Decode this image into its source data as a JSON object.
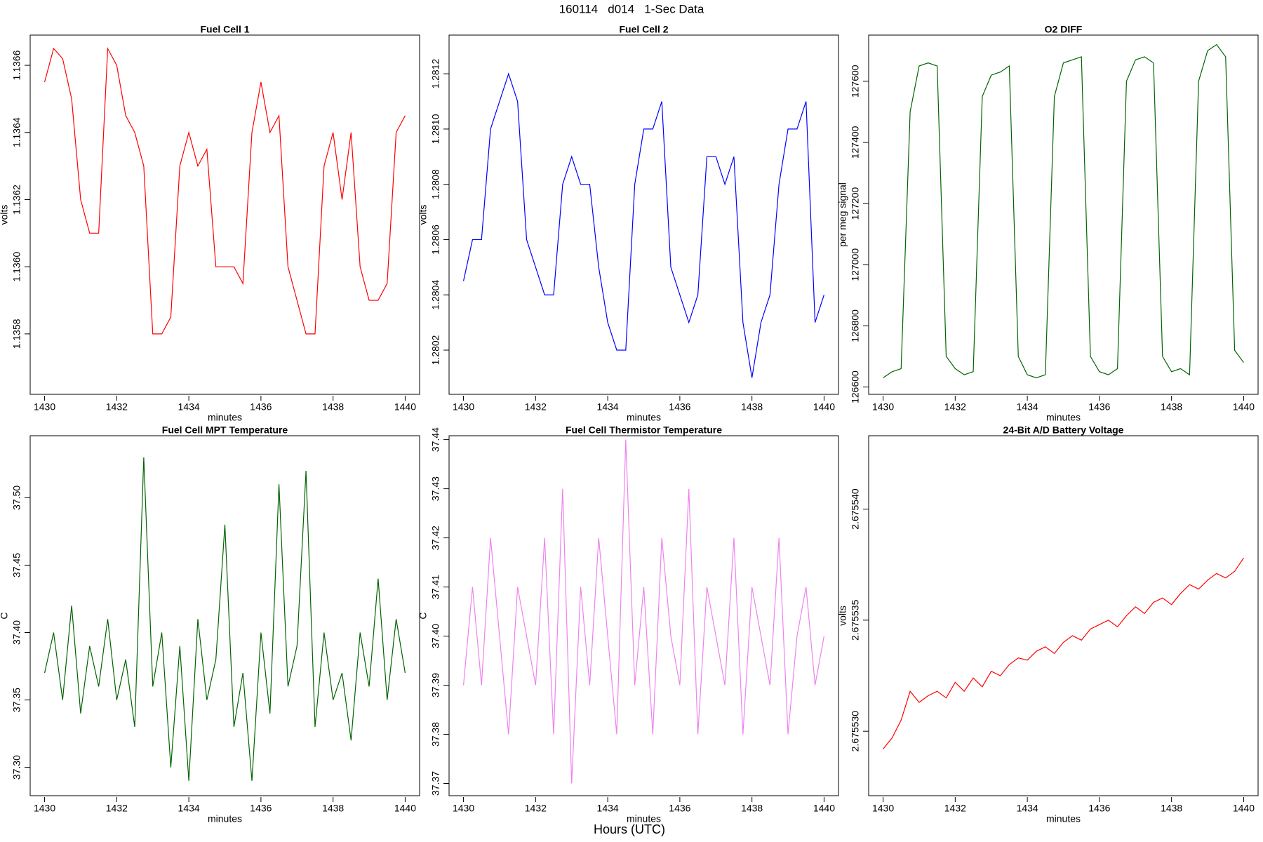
{
  "title": "160114   d014   1-Sec Data",
  "xlabel": "Hours (UTC)",
  "chart_data": [
    {
      "type": "line",
      "title": "Fuel Cell 1",
      "xlabel": "minutes",
      "ylabel": "volts",
      "color": "#ff0000",
      "x": [
        1430,
        1430.25,
        1430.5,
        1430.75,
        1431,
        1431.25,
        1431.5,
        1431.75,
        1432,
        1432.25,
        1432.5,
        1432.75,
        1433,
        1433.25,
        1433.5,
        1433.75,
        1434,
        1434.25,
        1434.5,
        1434.75,
        1435,
        1435.25,
        1435.5,
        1435.75,
        1436,
        1436.25,
        1436.5,
        1436.75,
        1437,
        1437.25,
        1437.5,
        1437.75,
        1438,
        1438.25,
        1438.5,
        1438.75,
        1439,
        1439.25,
        1439.5,
        1439.75,
        1440
      ],
      "values": [
        1.13655,
        1.13665,
        1.13662,
        1.1365,
        1.1362,
        1.1361,
        1.1361,
        1.13665,
        1.1366,
        1.13645,
        1.1364,
        1.1363,
        1.1358,
        1.1358,
        1.13585,
        1.1363,
        1.1364,
        1.1363,
        1.13635,
        1.136,
        1.136,
        1.136,
        1.13595,
        1.1364,
        1.13655,
        1.1364,
        1.13645,
        1.136,
        1.1359,
        1.1358,
        1.1358,
        1.1363,
        1.1364,
        1.1362,
        1.1364,
        1.136,
        1.1359,
        1.1359,
        1.13595,
        1.1364,
        1.13645
      ],
      "xlim": [
        1429.6,
        1440.4
      ],
      "xticks": [
        1430,
        1432,
        1434,
        1436,
        1438,
        1440
      ],
      "ylim": [
        1.13562,
        1.13669
      ],
      "yticks": [
        1.1358,
        {
          "value": 1.136,
          "label": "1.1360"
        },
        1.1362,
        1.1364,
        1.1366
      ]
    },
    {
      "type": "line",
      "title": "Fuel Cell 2",
      "xlabel": "minutes",
      "ylabel": "volts",
      "color": "#0000ff",
      "x": [
        1430,
        1430.25,
        1430.5,
        1430.75,
        1431,
        1431.25,
        1431.5,
        1431.75,
        1432,
        1432.25,
        1432.5,
        1432.75,
        1433,
        1433.25,
        1433.5,
        1433.75,
        1434,
        1434.25,
        1434.5,
        1434.75,
        1435,
        1435.25,
        1435.5,
        1435.75,
        1436,
        1436.25,
        1436.5,
        1436.75,
        1437,
        1437.25,
        1437.5,
        1437.75,
        1438,
        1438.25,
        1438.5,
        1438.75,
        1439,
        1439.25,
        1439.5,
        1439.75,
        1440
      ],
      "values": [
        1.28045,
        1.2806,
        1.2806,
        1.281,
        1.2811,
        1.2812,
        1.2811,
        1.2806,
        1.2805,
        1.2804,
        1.2804,
        1.2808,
        1.2809,
        1.2808,
        1.2808,
        1.2805,
        1.2803,
        1.2802,
        1.2802,
        1.2808,
        1.281,
        1.281,
        1.2811,
        1.2805,
        1.2804,
        1.2803,
        1.2804,
        1.2809,
        1.2809,
        1.2808,
        1.2809,
        1.2803,
        1.2801,
        1.2803,
        1.2804,
        1.2808,
        1.281,
        1.281,
        1.2811,
        1.2803,
        1.2804
      ],
      "xlim": [
        1429.6,
        1440.4
      ],
      "xticks": [
        1430,
        1432,
        1434,
        1436,
        1438,
        1440
      ],
      "ylim": [
        1.28004,
        1.28134
      ],
      "yticks": [
        1.2802,
        1.2804,
        1.2806,
        1.2808,
        {
          "value": 1.281,
          "label": "1.2810"
        },
        1.2812
      ]
    },
    {
      "type": "line",
      "title": "O2 DIFF",
      "xlabel": "minutes",
      "ylabel": "per meg signal",
      "color": "#006400",
      "x": [
        1430,
        1430.25,
        1430.5,
        1430.75,
        1431,
        1431.25,
        1431.5,
        1431.75,
        1432,
        1432.25,
        1432.5,
        1432.75,
        1433,
        1433.25,
        1433.5,
        1433.75,
        1434,
        1434.25,
        1434.5,
        1434.75,
        1435,
        1435.25,
        1435.5,
        1435.75,
        1436,
        1436.25,
        1436.5,
        1436.75,
        1437,
        1437.25,
        1437.5,
        1437.75,
        1438,
        1438.25,
        1438.5,
        1438.75,
        1439,
        1439.25,
        1439.5,
        1439.75,
        1440
      ],
      "values": [
        126630,
        126650,
        126660,
        127500,
        127650,
        127660,
        127650,
        126700,
        126660,
        126640,
        126650,
        127550,
        127620,
        127630,
        127650,
        126700,
        126640,
        126630,
        126640,
        127550,
        127660,
        127670,
        127680,
        126700,
        126650,
        126640,
        126660,
        127600,
        127670,
        127680,
        127660,
        126700,
        126650,
        126660,
        126640,
        127600,
        127700,
        127720,
        127680,
        126720,
        126680
      ],
      "xlim": [
        1429.6,
        1440.4
      ],
      "xticks": [
        1430,
        1432,
        1434,
        1436,
        1438,
        1440
      ],
      "ylim": [
        126576,
        127751
      ],
      "yticks": [
        126600,
        126800,
        127000,
        127200,
        127400,
        127600
      ]
    },
    {
      "type": "line",
      "title": "Fuel Cell MPT Temperature",
      "xlabel": "minutes",
      "ylabel": "C",
      "color": "#006400",
      "x": [
        1430,
        1430.25,
        1430.5,
        1430.75,
        1431,
        1431.25,
        1431.5,
        1431.75,
        1432,
        1432.25,
        1432.5,
        1432.75,
        1433,
        1433.25,
        1433.5,
        1433.75,
        1434,
        1434.25,
        1434.5,
        1434.75,
        1435,
        1435.25,
        1435.5,
        1435.75,
        1436,
        1436.25,
        1436.5,
        1436.75,
        1437,
        1437.25,
        1437.5,
        1437.75,
        1438,
        1438.25,
        1438.5,
        1438.75,
        1439,
        1439.25,
        1439.5,
        1439.75,
        1440
      ],
      "values": [
        37.37,
        37.4,
        37.35,
        37.42,
        37.34,
        37.39,
        37.36,
        37.41,
        37.35,
        37.38,
        37.33,
        37.53,
        37.36,
        37.4,
        37.3,
        37.39,
        37.29,
        37.41,
        37.35,
        37.38,
        37.48,
        37.33,
        37.37,
        37.29,
        37.4,
        37.34,
        37.51,
        37.36,
        37.39,
        37.52,
        37.33,
        37.4,
        37.35,
        37.37,
        37.32,
        37.4,
        37.36,
        37.44,
        37.35,
        37.41,
        37.37
      ],
      "xlim": [
        1429.6,
        1440.4
      ],
      "xticks": [
        1430,
        1432,
        1434,
        1436,
        1438,
        1440
      ],
      "ylim": [
        37.279,
        37.546
      ],
      "yticks": [
        {
          "value": 37.3,
          "label": "37.30"
        },
        37.35,
        {
          "value": 37.4,
          "label": "37.40"
        },
        37.45,
        {
          "value": 37.5,
          "label": "37.50"
        }
      ]
    },
    {
      "type": "line",
      "title": "Fuel Cell Thermistor Temperature",
      "xlabel": "minutes",
      "ylabel": "C",
      "color": "#ee82ee",
      "x": [
        1430,
        1430.25,
        1430.5,
        1430.75,
        1431,
        1431.25,
        1431.5,
        1431.75,
        1432,
        1432.25,
        1432.5,
        1432.75,
        1433,
        1433.25,
        1433.5,
        1433.75,
        1434,
        1434.25,
        1434.5,
        1434.75,
        1435,
        1435.25,
        1435.5,
        1435.75,
        1436,
        1436.25,
        1436.5,
        1436.75,
        1437,
        1437.25,
        1437.5,
        1437.75,
        1438,
        1438.25,
        1438.5,
        1438.75,
        1439,
        1439.25,
        1439.5,
        1439.75,
        1440
      ],
      "values": [
        37.39,
        37.41,
        37.39,
        37.42,
        37.4,
        37.38,
        37.41,
        37.4,
        37.39,
        37.42,
        37.38,
        37.43,
        37.37,
        37.41,
        37.39,
        37.42,
        37.4,
        37.38,
        37.44,
        37.39,
        37.41,
        37.38,
        37.42,
        37.4,
        37.39,
        37.43,
        37.38,
        37.41,
        37.4,
        37.39,
        37.42,
        37.38,
        37.41,
        37.4,
        37.39,
        37.42,
        37.38,
        37.4,
        37.41,
        37.39,
        37.4
      ],
      "xlim": [
        1429.6,
        1440.4
      ],
      "xticks": [
        1430,
        1432,
        1434,
        1436,
        1438,
        1440
      ],
      "ylim": [
        37.3675,
        37.4408
      ],
      "yticks": [
        37.37,
        37.38,
        37.39,
        {
          "value": 37.4,
          "label": "37.40"
        },
        37.41,
        37.42,
        37.43,
        37.44
      ]
    },
    {
      "type": "line",
      "title": "24-Bit A/D Battery Voltage",
      "xlabel": "minutes",
      "ylabel": "volts",
      "color": "#ff0000",
      "x": [
        1430,
        1430.25,
        1430.5,
        1430.75,
        1431,
        1431.25,
        1431.5,
        1431.75,
        1432,
        1432.25,
        1432.5,
        1432.75,
        1433,
        1433.25,
        1433.5,
        1433.75,
        1434,
        1434.25,
        1434.5,
        1434.75,
        1435,
        1435.25,
        1435.5,
        1435.75,
        1436,
        1436.25,
        1436.5,
        1436.75,
        1437,
        1437.25,
        1437.5,
        1437.75,
        1438,
        1438.25,
        1438.5,
        1438.75,
        1439,
        1439.25,
        1439.5,
        1439.75,
        1440
      ],
      "values": [
        2.6755292,
        2.6755297,
        2.6755305,
        2.6755318,
        2.6755313,
        2.6755316,
        2.6755318,
        2.6755315,
        2.6755322,
        2.6755318,
        2.6755324,
        2.675532,
        2.6755327,
        2.6755325,
        2.675533,
        2.6755333,
        2.6755332,
        2.6755336,
        2.6755338,
        2.6755335,
        2.675534,
        2.6755343,
        2.6755341,
        2.6755346,
        2.6755348,
        2.675535,
        2.6755347,
        2.6755352,
        2.6755356,
        2.6755353,
        2.6755358,
        2.675536,
        2.6755357,
        2.6755362,
        2.6755366,
        2.6755364,
        2.6755368,
        2.6755371,
        2.6755369,
        2.6755372,
        2.6755378
      ],
      "xlim": [
        1429.6,
        1440.4
      ],
      "xticks": [
        1430,
        1432,
        1434,
        1436,
        1438,
        1440
      ],
      "ylim": [
        2.6755271,
        2.6755433
      ],
      "yticks": [
        {
          "value": 2.67553,
          "label": "2.675530"
        },
        2.675535,
        {
          "value": 2.67554,
          "label": "2.675540"
        }
      ]
    }
  ]
}
